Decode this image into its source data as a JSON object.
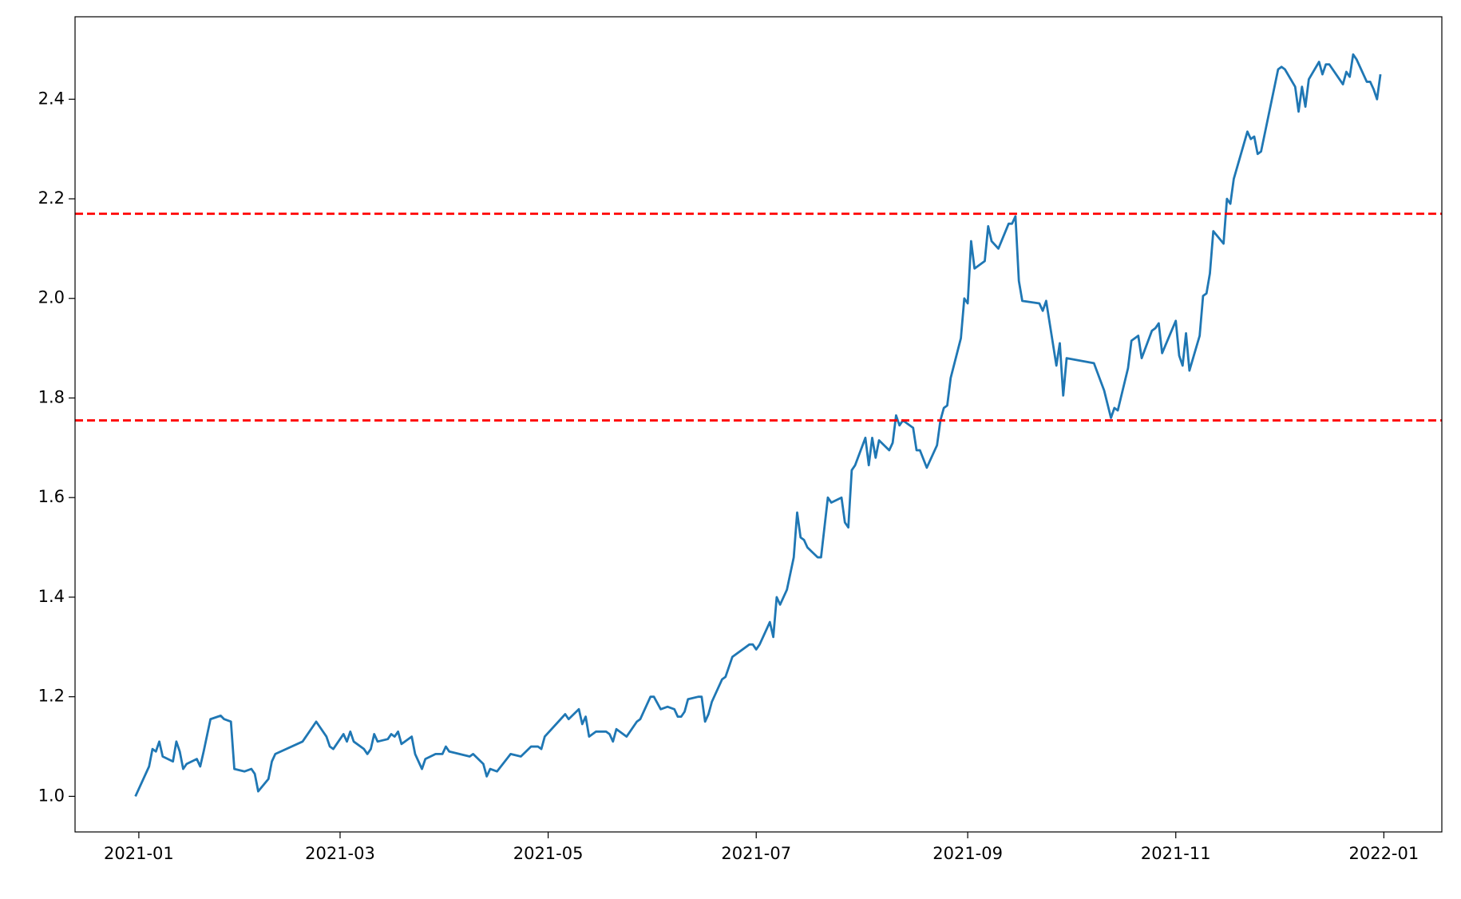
{
  "chart_data": {
    "type": "line",
    "x": [
      -1,
      3,
      4,
      5,
      6,
      7,
      10,
      11,
      12,
      13,
      14,
      17,
      18,
      19,
      21,
      24,
      25,
      27,
      28,
      31,
      33,
      34,
      35,
      38,
      39,
      40,
      48,
      52,
      55,
      56,
      57,
      60,
      61,
      62,
      63,
      66,
      67,
      68,
      69,
      70,
      73,
      74,
      75,
      76,
      77,
      80,
      81,
      83,
      84,
      87,
      89,
      90,
      91,
      97,
      98,
      101,
      102,
      103,
      105,
      109,
      112,
      115,
      117,
      118,
      119,
      125,
      126,
      129,
      130,
      131,
      132,
      134,
      137,
      138,
      139,
      140,
      143,
      146,
      147,
      150,
      151,
      153,
      155,
      157,
      158,
      159,
      160,
      161,
      164,
      165,
      166,
      167,
      168,
      171,
      172,
      174,
      178,
      179,
      180,
      181,
      182,
      185,
      186,
      187,
      188,
      190,
      192,
      193,
      194,
      195,
      196,
      199,
      200,
      201,
      202,
      203,
      206,
      207,
      208,
      209,
      210,
      213,
      214,
      215,
      216,
      217,
      220,
      221,
      222,
      223,
      224,
      227,
      228,
      229,
      231,
      234,
      235,
      236,
      237,
      238,
      241,
      242,
      243,
      244,
      245,
      248,
      249,
      250,
      252,
      255,
      256,
      257,
      258,
      259,
      264,
      265,
      266,
      269,
      270,
      271,
      272,
      280,
      283,
      285,
      286,
      287,
      290,
      291,
      293,
      294,
      297,
      298,
      299,
      300,
      304,
      305,
      306,
      307,
      308,
      311,
      312,
      313,
      314,
      315,
      318,
      319,
      320,
      321,
      325,
      326,
      327,
      328,
      329,
      334,
      335,
      336,
      339,
      340,
      341,
      342,
      343,
      346,
      347,
      348,
      349,
      353,
      354,
      355,
      356,
      357,
      360,
      361,
      362,
      363,
      364
    ],
    "values": [
      1.0,
      1.06,
      1.095,
      1.09,
      1.11,
      1.08,
      1.07,
      1.11,
      1.09,
      1.055,
      1.065,
      1.075,
      1.06,
      1.09,
      1.155,
      1.162,
      1.155,
      1.15,
      1.055,
      1.05,
      1.055,
      1.045,
      1.01,
      1.035,
      1.07,
      1.085,
      1.11,
      1.15,
      1.12,
      1.1,
      1.095,
      1.125,
      1.11,
      1.13,
      1.11,
      1.095,
      1.085,
      1.095,
      1.125,
      1.11,
      1.115,
      1.125,
      1.12,
      1.13,
      1.105,
      1.12,
      1.085,
      1.055,
      1.075,
      1.085,
      1.085,
      1.1,
      1.09,
      1.08,
      1.085,
      1.065,
      1.04,
      1.055,
      1.05,
      1.085,
      1.08,
      1.1,
      1.1,
      1.095,
      1.12,
      1.165,
      1.155,
      1.175,
      1.145,
      1.16,
      1.12,
      1.13,
      1.13,
      1.125,
      1.11,
      1.135,
      1.12,
      1.15,
      1.155,
      1.2,
      1.2,
      1.175,
      1.18,
      1.175,
      1.16,
      1.16,
      1.17,
      1.195,
      1.2,
      1.2,
      1.15,
      1.165,
      1.19,
      1.235,
      1.24,
      1.28,
      1.3,
      1.305,
      1.305,
      1.295,
      1.305,
      1.35,
      1.32,
      1.4,
      1.385,
      1.415,
      1.48,
      1.57,
      1.52,
      1.515,
      1.5,
      1.48,
      1.48,
      1.54,
      1.6,
      1.59,
      1.6,
      1.55,
      1.54,
      1.655,
      1.665,
      1.72,
      1.665,
      1.72,
      1.68,
      1.715,
      1.695,
      1.71,
      1.765,
      1.745,
      1.755,
      1.74,
      1.695,
      1.695,
      1.66,
      1.705,
      1.755,
      1.78,
      1.785,
      1.84,
      1.92,
      2.0,
      1.99,
      2.115,
      2.06,
      2.075,
      2.145,
      2.115,
      2.1,
      2.15,
      2.15,
      2.165,
      2.035,
      1.995,
      1.99,
      1.975,
      1.995,
      1.865,
      1.91,
      1.805,
      1.88,
      1.87,
      1.815,
      1.76,
      1.78,
      1.775,
      1.86,
      1.915,
      1.925,
      1.88,
      1.935,
      1.94,
      1.95,
      1.89,
      1.955,
      1.885,
      1.865,
      1.93,
      1.855,
      1.925,
      2.005,
      2.01,
      2.05,
      2.135,
      2.11,
      2.2,
      2.19,
      2.24,
      2.335,
      2.32,
      2.325,
      2.29,
      2.295,
      2.46,
      2.465,
      2.46,
      2.425,
      2.375,
      2.425,
      2.385,
      2.44,
      2.475,
      2.45,
      2.47,
      2.47,
      2.43,
      2.455,
      2.445,
      2.49,
      2.48,
      2.435,
      2.435,
      2.42,
      2.4,
      2.45
    ],
    "color": "#1f77b4",
    "hlines": [
      2.17,
      1.755
    ],
    "hline_color": "#ff0000",
    "hline_style": "dashed",
    "xlim": [
      -18.7,
      382
    ],
    "xticks": [
      {
        "value": 0,
        "label": "2021-01"
      },
      {
        "value": 59,
        "label": "2021-03"
      },
      {
        "value": 120,
        "label": "2021-05"
      },
      {
        "value": 181,
        "label": "2021-07"
      },
      {
        "value": 243,
        "label": "2021-09"
      },
      {
        "value": 304,
        "label": "2021-11"
      },
      {
        "value": 365,
        "label": "2022-01"
      }
    ],
    "ylim": [
      0.9285,
      2.5656
    ],
    "yticks": [
      {
        "value": 1,
        "label": "1.0"
      },
      1.2,
      1.4,
      1.6,
      1.8,
      {
        "value": 2,
        "label": "2.0"
      },
      2.2,
      2.4
    ],
    "grid": false
  }
}
